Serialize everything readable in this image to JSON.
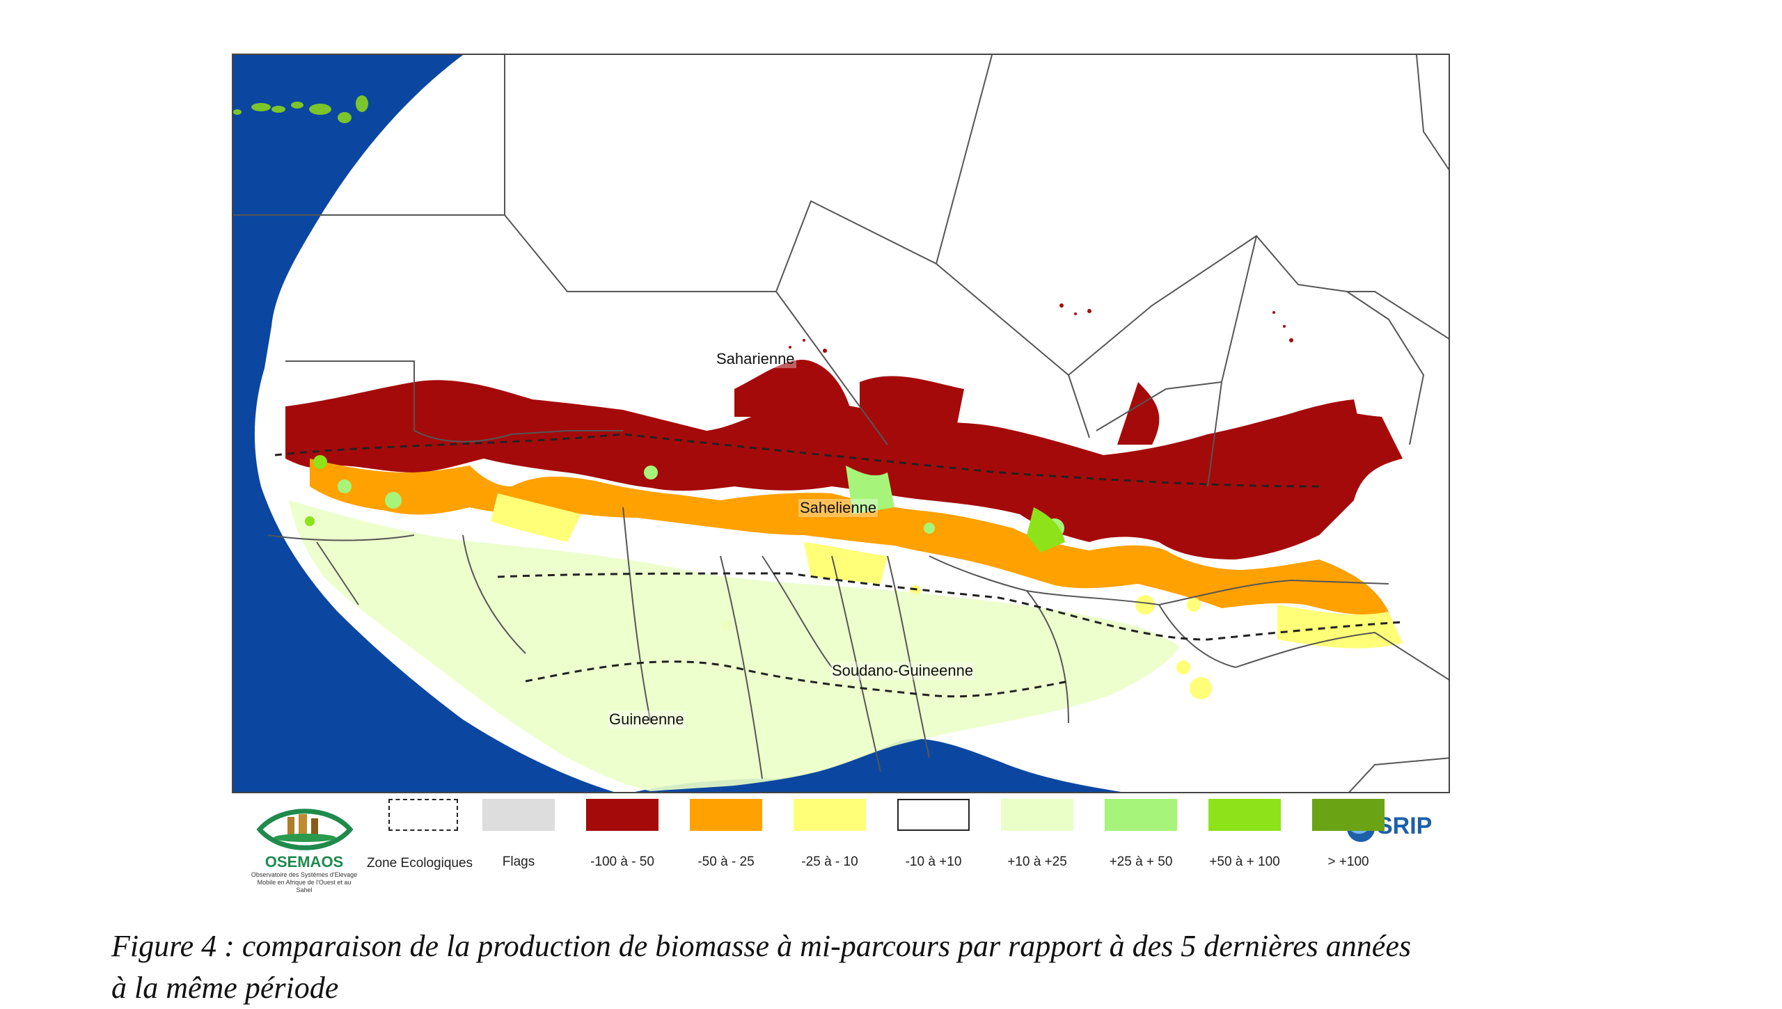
{
  "map": {
    "zone_labels": {
      "saharienne": "Saharienne",
      "sahelienne": "Sahelienne",
      "soudano_guineenne": "Soudano-Guineenne",
      "guineenne": "Guineenne"
    },
    "colors": {
      "ocean": "#0b47a1",
      "land": "#ffffff",
      "border": "#555555"
    }
  },
  "legend": {
    "zone_ecologiques": "Zone Ecologiques",
    "items": [
      {
        "label": "Flags",
        "color": "#dddddd"
      },
      {
        "label": "-100 à - 50",
        "color": "#a50a0a"
      },
      {
        "label": "-50 à - 25",
        "color": "#ffa100"
      },
      {
        "label": "-25 à - 10",
        "color": "#ffff78"
      },
      {
        "label": "-10 à +10",
        "color": "#ffffff"
      },
      {
        "label": "+10 à +25",
        "color": "#eaffc8"
      },
      {
        "label": "+25 à + 50",
        "color": "#a6f57a"
      },
      {
        "label": "+50 à + 100",
        "color": "#8ee21a"
      },
      {
        "label": "> +100",
        "color": "#6aa314"
      }
    ]
  },
  "logos": {
    "osemaos_name": "OSEMAOS",
    "osemaos_subtitle": "Observatoire des Systèmes d'Elevage Mobile en Afrique de l'Ouest et au Sahel",
    "srip": "SRIP"
  },
  "caption": {
    "line1": "Figure 4 : comparaison de la production de biomasse à mi-parcours par rapport à des 5 dernières années",
    "line2": "à la même période"
  }
}
